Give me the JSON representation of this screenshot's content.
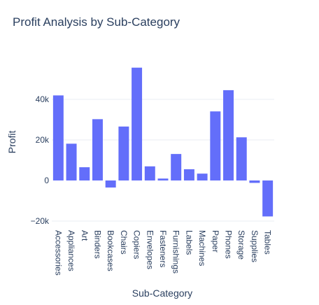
{
  "chart_data": {
    "type": "bar",
    "title": "Profit Analysis by Sub-Category",
    "xlabel": "Sub-Category",
    "ylabel": "Profit",
    "ylim": [
      -21000,
      62000
    ],
    "yticks": [
      {
        "value": -20000,
        "label": "−20k"
      },
      {
        "value": 0,
        "label": "0"
      },
      {
        "value": 20000,
        "label": "20k"
      },
      {
        "value": 40000,
        "label": "40k"
      }
    ],
    "grid": true,
    "bar_color": "#636efa",
    "categories": [
      "Accessories",
      "Appliances",
      "Art",
      "Binders",
      "Bookcases",
      "Chairs",
      "Copiers",
      "Envelopes",
      "Fasteners",
      "Furnishings",
      "Labels",
      "Machines",
      "Paper",
      "Phones",
      "Storage",
      "Supplies",
      "Tables"
    ],
    "values": [
      41936,
      18138,
      6528,
      30221,
      -3473,
      26590,
      55618,
      6964,
      950,
      13059,
      5546,
      3385,
      34054,
      44516,
      21279,
      -1189,
      -17725
    ]
  },
  "colors": {
    "title": "#2a3f5f",
    "text": "#2a3f5f",
    "grid": "#e8edf3",
    "zeroline": "#ffffff"
  }
}
